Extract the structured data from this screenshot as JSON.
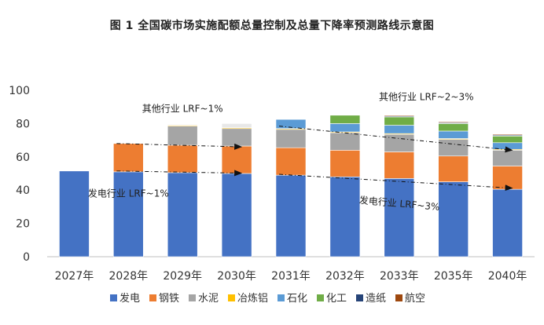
{
  "chart_data": {
    "type": "bar",
    "stacked": true,
    "title": "图 1 全国碳市场实施配额总量控制及总量下降率预测路线示意图",
    "xlabel": "",
    "ylabel": "",
    "ylim": [
      0,
      100
    ],
    "yticks": [
      0,
      20,
      40,
      60,
      80,
      100
    ],
    "categories": [
      "2027年",
      "2028年",
      "2029年",
      "2030年",
      "2031年",
      "2032年",
      "2033年",
      "2035年",
      "2040年"
    ],
    "series": [
      {
        "name": "发电",
        "color": "#4472C4",
        "values": [
          51.5,
          51,
          50.5,
          50,
          49,
          48,
          47,
          45,
          40.5
        ]
      },
      {
        "name": "钢铁",
        "color": "#ED7D31",
        "values": [
          0,
          17,
          16.5,
          16.5,
          16.5,
          16,
          16,
          15.5,
          14
        ]
      },
      {
        "name": "水泥",
        "color": "#A5A5A5",
        "values": [
          0,
          0,
          11.5,
          10.5,
          11,
          10.5,
          10.5,
          10,
          9.5
        ]
      },
      {
        "name": "冶炼铝",
        "color": "#FFC000",
        "values": [
          0,
          0,
          0.5,
          0.5,
          0.5,
          0.5,
          0.5,
          0.5,
          0.5
        ]
      },
      {
        "name": "石化",
        "color": "#5B9BD5",
        "values": [
          0,
          0,
          0,
          0,
          5.5,
          5,
          5,
          4.5,
          4
        ]
      },
      {
        "name": "化工",
        "color": "#70AD47",
        "values": [
          0,
          0,
          0,
          0,
          0,
          5,
          5,
          4.5,
          4
        ]
      },
      {
        "name": "造纸",
        "color": "#264478",
        "values": [
          0,
          0,
          0,
          0,
          0,
          0,
          0.5,
          0.5,
          0.5
        ]
      },
      {
        "name": "航空",
        "color": "#9E480E",
        "values": [
          0,
          0,
          0,
          0,
          0,
          0,
          0.5,
          0.5,
          0.5
        ]
      }
    ],
    "faded_tops": [
      {
        "category": "2029年",
        "value": 0.5
      },
      {
        "category": "2030年",
        "value": 2.5
      }
    ],
    "trend_lines": [
      {
        "name": "power",
        "from": [
          "2028年",
          51.5
        ],
        "to": [
          "2030年",
          50.2
        ],
        "arrow": true,
        "style": "dash-dot"
      },
      {
        "name": "power",
        "from": [
          "2031年",
          49.5
        ],
        "to": [
          "2040年",
          41.2
        ],
        "arrow": true,
        "style": "dash-dot"
      },
      {
        "name": "others",
        "from": [
          "2028年",
          68
        ],
        "to": [
          "2030年",
          66
        ],
        "arrow": true,
        "style": "dash-dot"
      },
      {
        "name": "others",
        "from": [
          "2031年",
          78.5
        ],
        "to": [
          "2040年",
          64
        ],
        "arrow": true,
        "style": "dash-dot"
      }
    ],
    "annotations": [
      {
        "text": "其他行业 LRF~1%",
        "near": "2029年",
        "y": 87
      },
      {
        "text": "发电行业 LRF~1%",
        "near": "2028年",
        "y": 36
      },
      {
        "text": "其他行业 LRF~2~3%",
        "near": "2034年",
        "y": 94
      },
      {
        "text": "发电行业 LRF~3%",
        "near": "2033年",
        "y": 30
      }
    ]
  }
}
